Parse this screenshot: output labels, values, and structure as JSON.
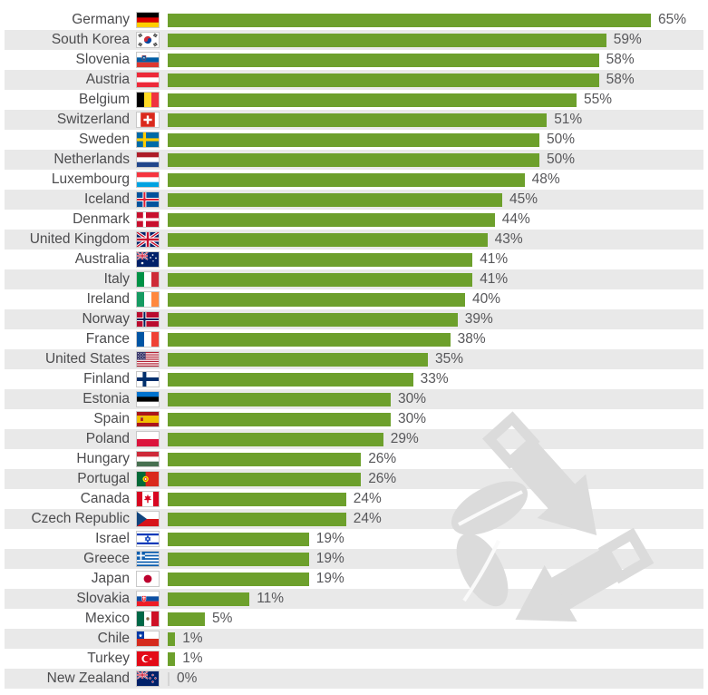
{
  "chart_data": {
    "type": "bar",
    "orientation": "horizontal",
    "title": "",
    "unit": "%",
    "grid": false,
    "legend": false,
    "xlim": [
      0,
      72
    ],
    "bar_color": "#6DA02C",
    "stripe_color": "#E9E9E9",
    "watermark_color": "#DBDBDB",
    "watermark_icon": "recycling-watermark-icon",
    "categories": [
      "Germany",
      "South Korea",
      "Slovenia",
      "Austria",
      "Belgium",
      "Switzerland",
      "Sweden",
      "Netherlands",
      "Luxembourg",
      "Iceland",
      "Denmark",
      "United Kingdom",
      "Australia",
      "Italy",
      "Ireland",
      "Norway",
      "France",
      "United States",
      "Finland",
      "Estonia",
      "Spain",
      "Poland",
      "Hungary",
      "Portugal",
      "Canada",
      "Czech Republic",
      "Israel",
      "Greece",
      "Japan",
      "Slovakia",
      "Mexico",
      "Chile",
      "Turkey",
      "New Zealand"
    ],
    "values": [
      65,
      59,
      58,
      58,
      55,
      51,
      50,
      50,
      48,
      45,
      44,
      43,
      41,
      41,
      40,
      39,
      38,
      35,
      33,
      30,
      30,
      29,
      26,
      26,
      24,
      24,
      19,
      19,
      19,
      11,
      5,
      1,
      1,
      0
    ],
    "rows": [
      {
        "country": "Germany",
        "value": 65,
        "label": "65%",
        "flag": "de",
        "flag_icon": "germany-flag-icon"
      },
      {
        "country": "South Korea",
        "value": 59,
        "label": "59%",
        "flag": "kr",
        "flag_icon": "south-korea-flag-icon"
      },
      {
        "country": "Slovenia",
        "value": 58,
        "label": "58%",
        "flag": "si",
        "flag_icon": "slovenia-flag-icon"
      },
      {
        "country": "Austria",
        "value": 58,
        "label": "58%",
        "flag": "at",
        "flag_icon": "austria-flag-icon"
      },
      {
        "country": "Belgium",
        "value": 55,
        "label": "55%",
        "flag": "be",
        "flag_icon": "belgium-flag-icon"
      },
      {
        "country": "Switzerland",
        "value": 51,
        "label": "51%",
        "flag": "ch",
        "flag_icon": "switzerland-flag-icon"
      },
      {
        "country": "Sweden",
        "value": 50,
        "label": "50%",
        "flag": "se",
        "flag_icon": "sweden-flag-icon"
      },
      {
        "country": "Netherlands",
        "value": 50,
        "label": "50%",
        "flag": "nl",
        "flag_icon": "netherlands-flag-icon"
      },
      {
        "country": "Luxembourg",
        "value": 48,
        "label": "48%",
        "flag": "lu",
        "flag_icon": "luxembourg-flag-icon"
      },
      {
        "country": "Iceland",
        "value": 45,
        "label": "45%",
        "flag": "is",
        "flag_icon": "iceland-flag-icon"
      },
      {
        "country": "Denmark",
        "value": 44,
        "label": "44%",
        "flag": "dk",
        "flag_icon": "denmark-flag-icon"
      },
      {
        "country": "United Kingdom",
        "value": 43,
        "label": "43%",
        "flag": "gb",
        "flag_icon": "united-kingdom-flag-icon"
      },
      {
        "country": "Australia",
        "value": 41,
        "label": "41%",
        "flag": "au",
        "flag_icon": "australia-flag-icon"
      },
      {
        "country": "Italy",
        "value": 41,
        "label": "41%",
        "flag": "it",
        "flag_icon": "italy-flag-icon"
      },
      {
        "country": "Ireland",
        "value": 40,
        "label": "40%",
        "flag": "ie",
        "flag_icon": "ireland-flag-icon"
      },
      {
        "country": "Norway",
        "value": 39,
        "label": "39%",
        "flag": "no",
        "flag_icon": "norway-flag-icon"
      },
      {
        "country": "France",
        "value": 38,
        "label": "38%",
        "flag": "fr",
        "flag_icon": "france-flag-icon"
      },
      {
        "country": "United States",
        "value": 35,
        "label": "35%",
        "flag": "us",
        "flag_icon": "united-states-flag-icon"
      },
      {
        "country": "Finland",
        "value": 33,
        "label": "33%",
        "flag": "fi",
        "flag_icon": "finland-flag-icon"
      },
      {
        "country": "Estonia",
        "value": 30,
        "label": "30%",
        "flag": "ee",
        "flag_icon": "estonia-flag-icon"
      },
      {
        "country": "Spain",
        "value": 30,
        "label": "30%",
        "flag": "es",
        "flag_icon": "spain-flag-icon"
      },
      {
        "country": "Poland",
        "value": 29,
        "label": "29%",
        "flag": "pl",
        "flag_icon": "poland-flag-icon"
      },
      {
        "country": "Hungary",
        "value": 26,
        "label": "26%",
        "flag": "hu",
        "flag_icon": "hungary-flag-icon"
      },
      {
        "country": "Portugal",
        "value": 26,
        "label": "26%",
        "flag": "pt",
        "flag_icon": "portugal-flag-icon"
      },
      {
        "country": "Canada",
        "value": 24,
        "label": "24%",
        "flag": "ca",
        "flag_icon": "canada-flag-icon"
      },
      {
        "country": "Czech Republic",
        "value": 24,
        "label": "24%",
        "flag": "cz",
        "flag_icon": "czech-republic-flag-icon"
      },
      {
        "country": "Israel",
        "value": 19,
        "label": "19%",
        "flag": "il",
        "flag_icon": "israel-flag-icon"
      },
      {
        "country": "Greece",
        "value": 19,
        "label": "19%",
        "flag": "gr",
        "flag_icon": "greece-flag-icon"
      },
      {
        "country": "Japan",
        "value": 19,
        "label": "19%",
        "flag": "jp",
        "flag_icon": "japan-flag-icon"
      },
      {
        "country": "Slovakia",
        "value": 11,
        "label": "11%",
        "flag": "sk",
        "flag_icon": "slovakia-flag-icon"
      },
      {
        "country": "Mexico",
        "value": 5,
        "label": "5%",
        "flag": "mx",
        "flag_icon": "mexico-flag-icon"
      },
      {
        "country": "Chile",
        "value": 1,
        "label": "1%",
        "flag": "cl",
        "flag_icon": "chile-flag-icon"
      },
      {
        "country": "Turkey",
        "value": 1,
        "label": "1%",
        "flag": "tr",
        "flag_icon": "turkey-flag-icon"
      },
      {
        "country": "New Zealand",
        "value": 0,
        "label": "0%",
        "flag": "nz",
        "flag_icon": "new-zealand-flag-icon"
      }
    ]
  }
}
